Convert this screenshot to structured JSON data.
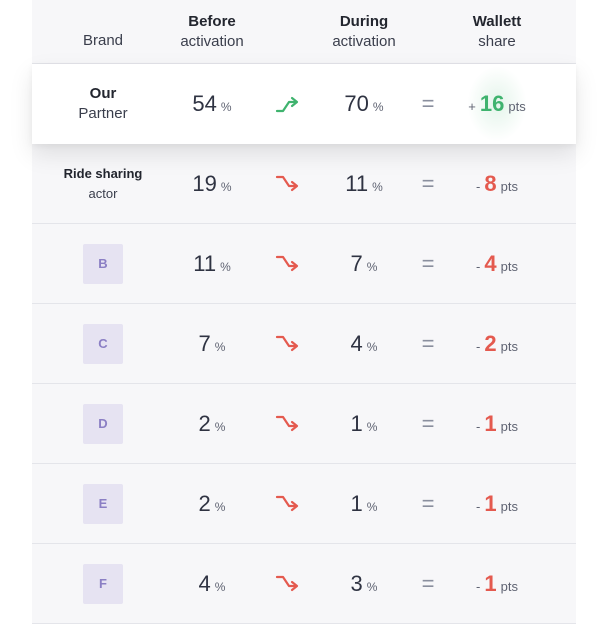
{
  "header": {
    "brand": "Brand",
    "before_1": "Before",
    "before_2": "activation",
    "during_1": "During",
    "during_2": "activation",
    "share_1": "Wallett",
    "share_2": "share"
  },
  "units": {
    "pct": "%",
    "pts": "pts",
    "equals": "="
  },
  "rows": [
    {
      "brand_bold": "Our",
      "brand_sub": "Partner",
      "before": "54",
      "during": "70",
      "trend": "up",
      "sign": "+",
      "delta": "16"
    },
    {
      "brand_bold": "Ride sharing",
      "brand_sub": "actor",
      "before": "19",
      "during": "11",
      "trend": "down",
      "sign": "-",
      "delta": "8"
    },
    {
      "badge": "B",
      "before": "11",
      "during": "7",
      "trend": "down",
      "sign": "-",
      "delta": "4"
    },
    {
      "badge": "C",
      "before": "7",
      "during": "4",
      "trend": "down",
      "sign": "-",
      "delta": "2"
    },
    {
      "badge": "D",
      "before": "2",
      "during": "1",
      "trend": "down",
      "sign": "-",
      "delta": "1"
    },
    {
      "badge": "E",
      "before": "2",
      "during": "1",
      "trend": "down",
      "sign": "-",
      "delta": "1"
    },
    {
      "badge": "F",
      "before": "4",
      "during": "3",
      "trend": "down",
      "sign": "-",
      "delta": "1"
    }
  ],
  "colors": {
    "up": "#3fb36e",
    "down": "#e45a4f",
    "badge_bg": "#e6e3f2",
    "badge_fg": "#8b7fc4"
  },
  "icons": {
    "up": "trend-up-arrow-icon",
    "down": "trend-down-arrow-icon"
  }
}
